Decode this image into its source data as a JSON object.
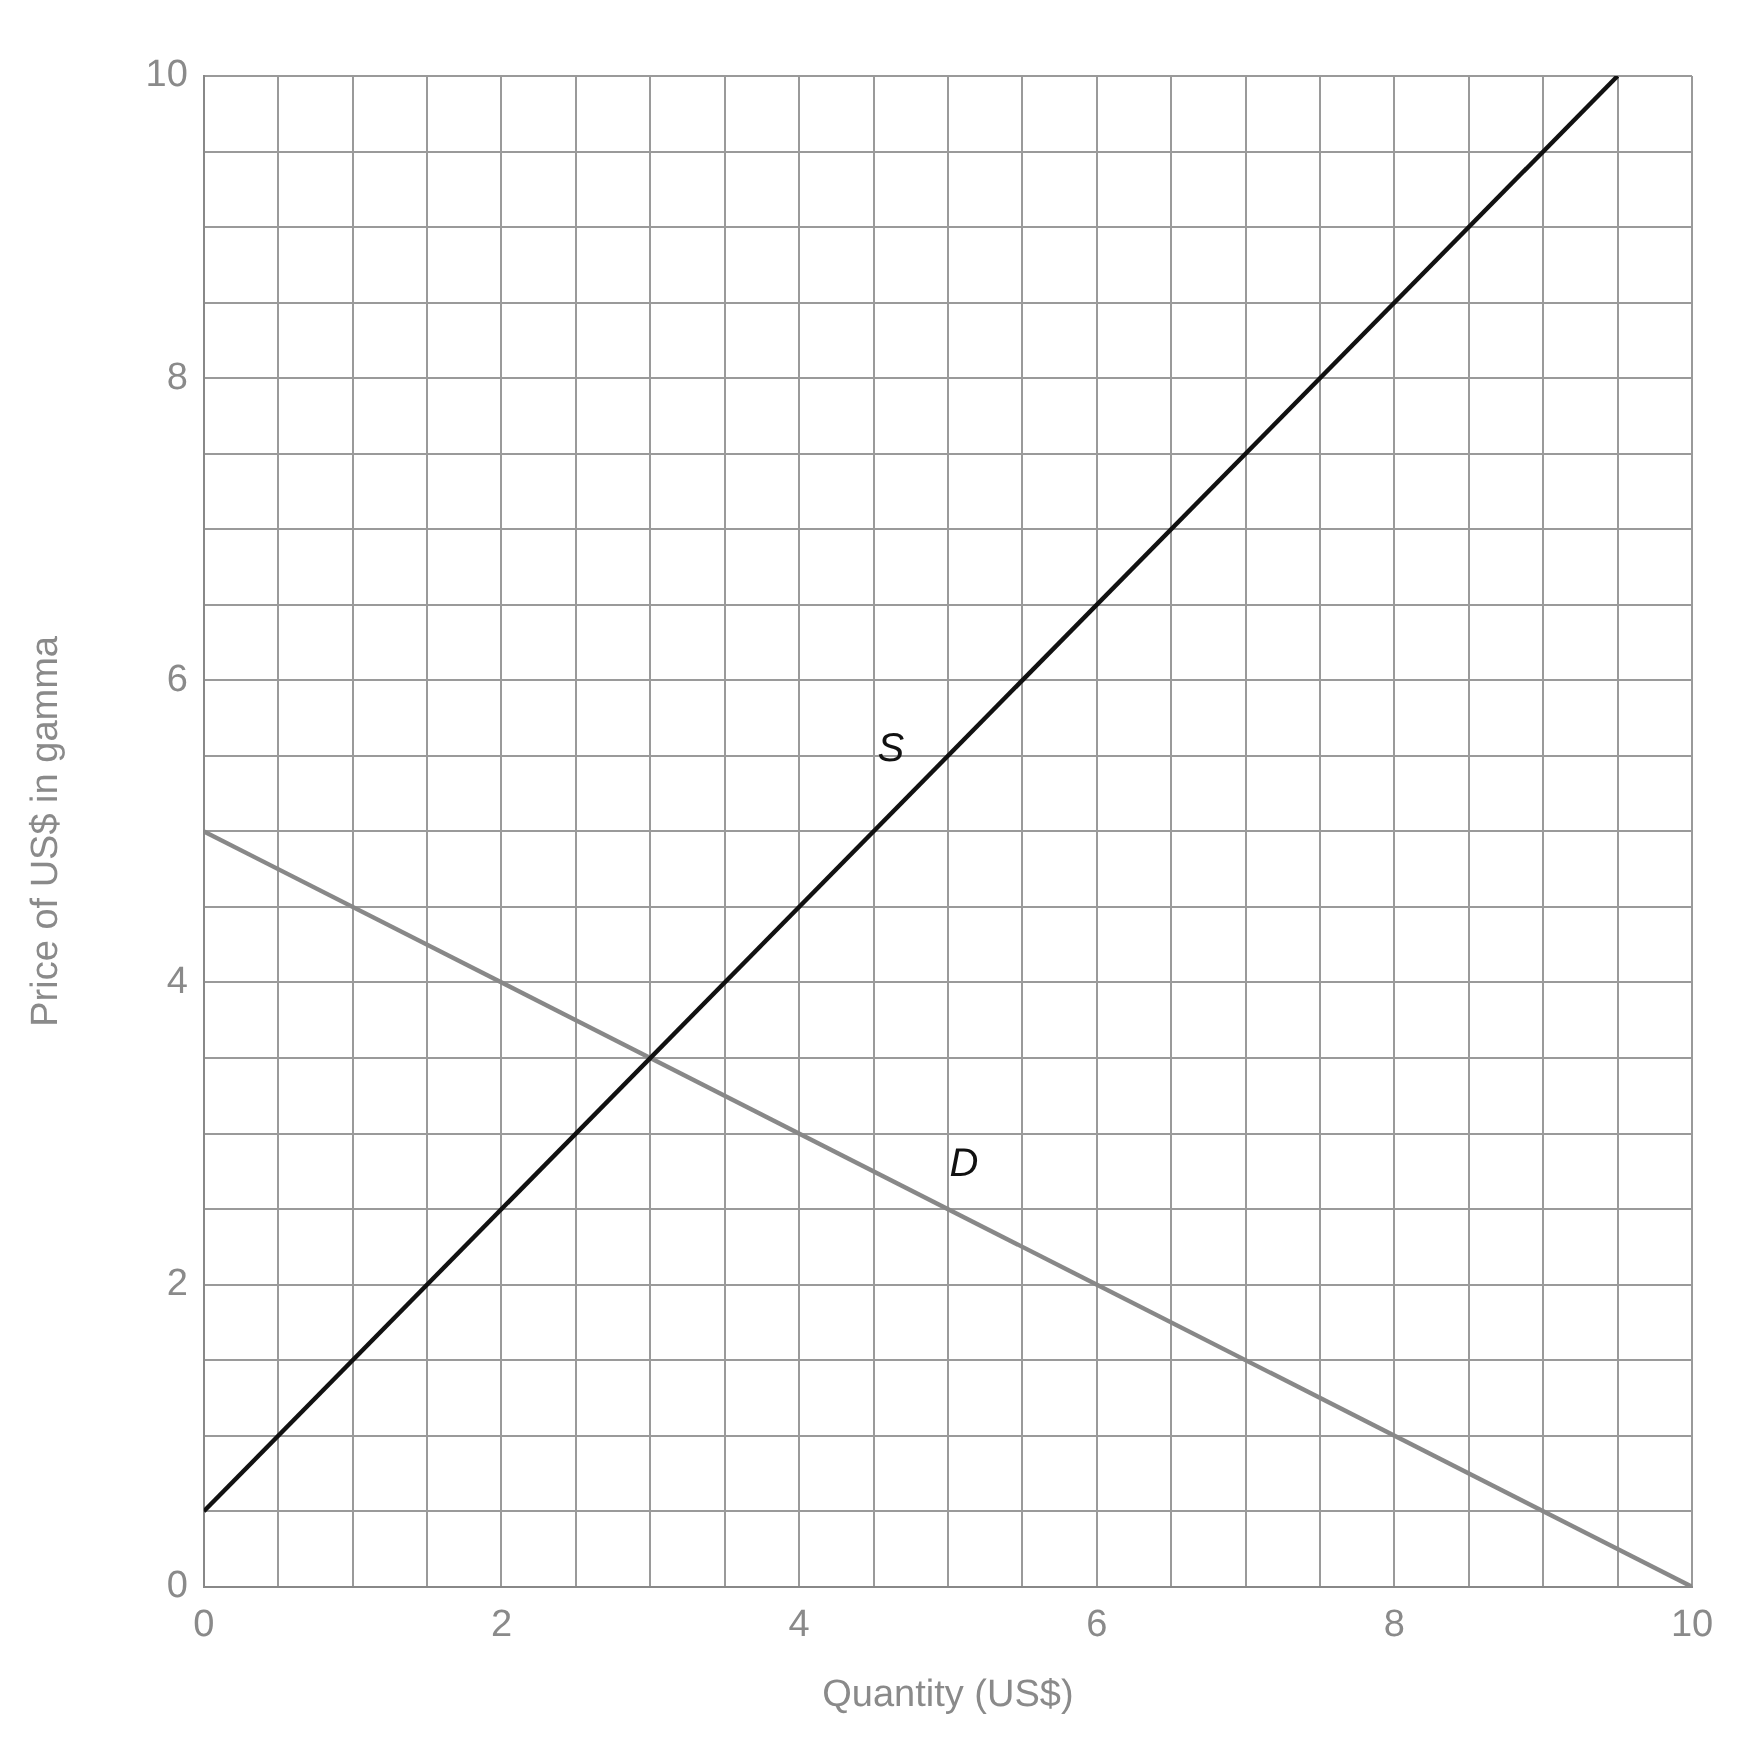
{
  "chart_data": {
    "type": "line",
    "xlabel": "Quantity (US$)",
    "ylabel": "Price of US$ in gamma",
    "xlim": [
      0,
      10
    ],
    "ylim": [
      0,
      10
    ],
    "xticks": [
      0,
      {
        "value": 0.5,
        "label": null
      },
      {
        "value": 1,
        "label": null
      },
      {
        "value": 1.5,
        "label": null
      },
      2,
      {
        "value": 2.5,
        "label": null
      },
      {
        "value": 3,
        "label": null
      },
      {
        "value": 3.5,
        "label": null
      },
      4,
      {
        "value": 4.5,
        "label": null
      },
      {
        "value": 5,
        "label": null
      },
      {
        "value": 5.5,
        "label": null
      },
      6,
      {
        "value": 6.5,
        "label": null
      },
      {
        "value": 7,
        "label": null
      },
      {
        "value": 7.5,
        "label": null
      },
      8,
      {
        "value": 8.5,
        "label": null
      },
      {
        "value": 9,
        "label": null
      },
      {
        "value": 9.5,
        "label": null
      },
      10
    ],
    "yticks": [
      0,
      {
        "value": 0.5,
        "label": null
      },
      {
        "value": 1,
        "label": null
      },
      {
        "value": 1.5,
        "label": null
      },
      2,
      {
        "value": 2.5,
        "label": null
      },
      {
        "value": 3,
        "label": null
      },
      {
        "value": 3.5,
        "label": null
      },
      4,
      {
        "value": 4.5,
        "label": null
      },
      {
        "value": 5,
        "label": null
      },
      {
        "value": 5.5,
        "label": null
      },
      6,
      {
        "value": 6.5,
        "label": null
      },
      {
        "value": 7,
        "label": null
      },
      {
        "value": 7.5,
        "label": null
      },
      8,
      {
        "value": 8.5,
        "label": null
      },
      {
        "value": 9,
        "label": null
      },
      {
        "value": 9.5,
        "label": null
      },
      10
    ],
    "grid": true,
    "legend": false,
    "marker": "none",
    "series": [
      {
        "name": "S",
        "color": "#111111",
        "x": [
          0,
          9.5
        ],
        "values": [
          0.5,
          10
        ]
      },
      {
        "name": "D",
        "color": "#888888",
        "x": [
          0,
          10
        ],
        "values": [
          5,
          0
        ]
      }
    ]
  }
}
